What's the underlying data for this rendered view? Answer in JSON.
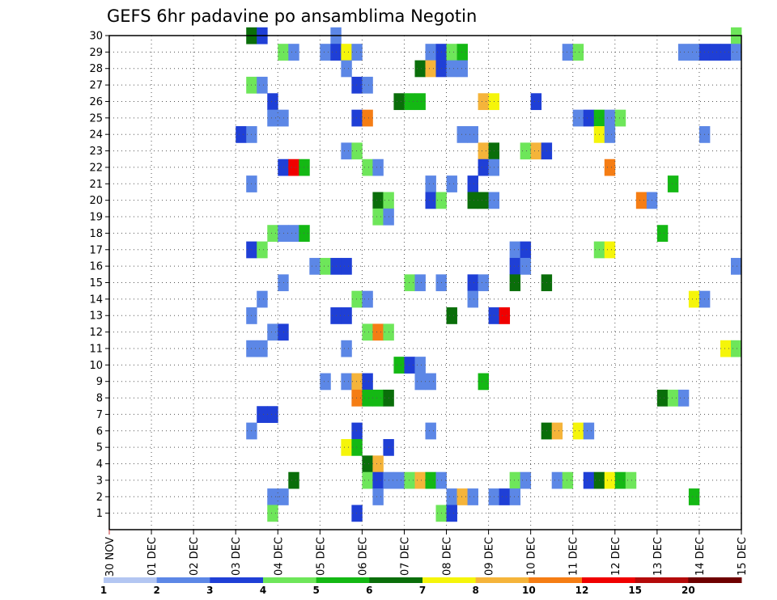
{
  "chart_data": {
    "type": "heatmap",
    "title": "GEFS 6hr padavine po ansamblima Negotin",
    "xlabel": "",
    "ylabel": "",
    "x_tick_labels": [
      "30 NOV",
      "01 DEC",
      "02 DEC",
      "03 DEC",
      "04 DEC",
      "05 DEC",
      "06 DEC",
      "07 DEC",
      "08 DEC",
      "09 DEC",
      "10 DEC",
      "11 DEC",
      "12 DEC",
      "13 DEC",
      "14 DEC",
      "15 DEC"
    ],
    "xlim_steps": [
      0,
      60
    ],
    "y_tick_labels": [
      "1",
      "2",
      "3",
      "4",
      "5",
      "6",
      "7",
      "8",
      "9",
      "10",
      "11",
      "12",
      "13",
      "14",
      "15",
      "16",
      "17",
      "18",
      "19",
      "20",
      "21",
      "22",
      "23",
      "24",
      "25",
      "26",
      "27",
      "28",
      "29",
      "30"
    ],
    "ylim": [
      0,
      30
    ],
    "grid": true,
    "colorbar": {
      "labels": [
        "1",
        "2",
        "3",
        "4",
        "5",
        "6",
        "7",
        "8",
        "10",
        "12",
        "15",
        "20"
      ],
      "colors": [
        "#b3c6f2",
        "#5c87e6",
        "#1f3fd6",
        "#6ee65a",
        "#14b814",
        "#0a6e0a",
        "#f5f50a",
        "#f5b43a",
        "#f57d14",
        "#f00000",
        "#b40a0a",
        "#6e0000"
      ]
    },
    "cells": [
      [
        30,
        13.5,
        5
      ],
      [
        30,
        14.5,
        2
      ],
      [
        30,
        21.5,
        1
      ],
      [
        30,
        59.5,
        3
      ],
      [
        29,
        16.5,
        3
      ],
      [
        29,
        17.5,
        1
      ],
      [
        29,
        20.5,
        1
      ],
      [
        29,
        21.5,
        2
      ],
      [
        29,
        22.5,
        6
      ],
      [
        29,
        23.5,
        1
      ],
      [
        29,
        30.5,
        1
      ],
      [
        29,
        31.5,
        2
      ],
      [
        29,
        32.5,
        3
      ],
      [
        29,
        33.5,
        4
      ],
      [
        29,
        43.5,
        1
      ],
      [
        29,
        44.5,
        3
      ],
      [
        29,
        54.5,
        1
      ],
      [
        29,
        55.5,
        1
      ],
      [
        29,
        56.5,
        2
      ],
      [
        29,
        57.5,
        2
      ],
      [
        29,
        58.5,
        2
      ],
      [
        29,
        59.5,
        1
      ],
      [
        28,
        22.5,
        1
      ],
      [
        28,
        29.5,
        5
      ],
      [
        28,
        30.5,
        7
      ],
      [
        28,
        31.5,
        2
      ],
      [
        28,
        32.5,
        1
      ],
      [
        28,
        33.5,
        1
      ],
      [
        27,
        13.5,
        3
      ],
      [
        27,
        14.5,
        1
      ],
      [
        27,
        23.5,
        2
      ],
      [
        27,
        24.5,
        1
      ],
      [
        26,
        15.5,
        2
      ],
      [
        26,
        27.5,
        5
      ],
      [
        26,
        28.5,
        4
      ],
      [
        26,
        29.5,
        4
      ],
      [
        26,
        35.5,
        7
      ],
      [
        26,
        36.5,
        6
      ],
      [
        26,
        40.5,
        2
      ],
      [
        25,
        15.5,
        1
      ],
      [
        25,
        16.5,
        1
      ],
      [
        25,
        23.5,
        2
      ],
      [
        25,
        24.5,
        8
      ],
      [
        25,
        44.5,
        1
      ],
      [
        25,
        45.5,
        2
      ],
      [
        25,
        46.5,
        4
      ],
      [
        25,
        47.5,
        1
      ],
      [
        25,
        48.5,
        3
      ],
      [
        24,
        12.5,
        2
      ],
      [
        24,
        13.5,
        1
      ],
      [
        24,
        33.5,
        1
      ],
      [
        24,
        34.5,
        1
      ],
      [
        24,
        46.5,
        6
      ],
      [
        24,
        47.5,
        1
      ],
      [
        24,
        56.5,
        1
      ],
      [
        23,
        22.5,
        1
      ],
      [
        23,
        23.5,
        3
      ],
      [
        23,
        35.5,
        7
      ],
      [
        23,
        36.5,
        5
      ],
      [
        23,
        39.5,
        3
      ],
      [
        23,
        40.5,
        7
      ],
      [
        23,
        41.5,
        2
      ],
      [
        22,
        16.5,
        2
      ],
      [
        22,
        17.5,
        9
      ],
      [
        22,
        18.5,
        4
      ],
      [
        22,
        24.5,
        3
      ],
      [
        22,
        25.5,
        1
      ],
      [
        22,
        35.5,
        2
      ],
      [
        22,
        36.5,
        1
      ],
      [
        22,
        47.5,
        8
      ],
      [
        21,
        13.5,
        1
      ],
      [
        21,
        30.5,
        1
      ],
      [
        21,
        32.5,
        1
      ],
      [
        21,
        34.5,
        2
      ],
      [
        21,
        53.5,
        4
      ],
      [
        20,
        25.5,
        5
      ],
      [
        20,
        26.5,
        3
      ],
      [
        20,
        30.5,
        2
      ],
      [
        20,
        31.5,
        3
      ],
      [
        20,
        34.5,
        5
      ],
      [
        20,
        35.5,
        5
      ],
      [
        20,
        36.5,
        1
      ],
      [
        20,
        50.5,
        8
      ],
      [
        20,
        51.5,
        1
      ],
      [
        19,
        25.5,
        3
      ],
      [
        19,
        26.5,
        1
      ],
      [
        18,
        15.5,
        3
      ],
      [
        18,
        16.5,
        1
      ],
      [
        18,
        17.5,
        1
      ],
      [
        18,
        18.5,
        4
      ],
      [
        18,
        52.5,
        4
      ],
      [
        17,
        13.5,
        2
      ],
      [
        17,
        14.5,
        3
      ],
      [
        17,
        38.5,
        1
      ],
      [
        17,
        39.5,
        2
      ],
      [
        17,
        46.5,
        3
      ],
      [
        17,
        47.5,
        6
      ],
      [
        16,
        19.5,
        1
      ],
      [
        16,
        20.5,
        3
      ],
      [
        16,
        21.5,
        2
      ],
      [
        16,
        22.5,
        2
      ],
      [
        16,
        38.5,
        2
      ],
      [
        16,
        39.5,
        1
      ],
      [
        16,
        59.5,
        1
      ],
      [
        15,
        16.5,
        1
      ],
      [
        15,
        28.5,
        3
      ],
      [
        15,
        29.5,
        1
      ],
      [
        15,
        31.5,
        1
      ],
      [
        15,
        34.5,
        2
      ],
      [
        15,
        35.5,
        1
      ],
      [
        15,
        38.5,
        5
      ],
      [
        15,
        41.5,
        5
      ],
      [
        14,
        14.5,
        1
      ],
      [
        14,
        23.5,
        3
      ],
      [
        14,
        24.5,
        1
      ],
      [
        14,
        34.5,
        1
      ],
      [
        14,
        55.5,
        6
      ],
      [
        14,
        56.5,
        1
      ],
      [
        13,
        13.5,
        1
      ],
      [
        13,
        21.5,
        2
      ],
      [
        13,
        22.5,
        2
      ],
      [
        13,
        32.5,
        5
      ],
      [
        13,
        36.5,
        2
      ],
      [
        13,
        37.5,
        9
      ],
      [
        12,
        15.5,
        1
      ],
      [
        12,
        16.5,
        2
      ],
      [
        12,
        24.5,
        3
      ],
      [
        12,
        25.5,
        8
      ],
      [
        12,
        26.5,
        3
      ],
      [
        11,
        13.5,
        1
      ],
      [
        11,
        14.5,
        1
      ],
      [
        11,
        22.5,
        1
      ],
      [
        11,
        58.5,
        6
      ],
      [
        11,
        59.5,
        3
      ],
      [
        10,
        27.5,
        4
      ],
      [
        10,
        28.5,
        2
      ],
      [
        10,
        29.5,
        1
      ],
      [
        9,
        20.5,
        1
      ],
      [
        9,
        22.5,
        1
      ],
      [
        9,
        23.5,
        7
      ],
      [
        9,
        24.5,
        2
      ],
      [
        9,
        29.5,
        1
      ],
      [
        9,
        30.5,
        1
      ],
      [
        9,
        35.5,
        4
      ],
      [
        8,
        23.5,
        8
      ],
      [
        8,
        24.5,
        4
      ],
      [
        8,
        25.5,
        4
      ],
      [
        8,
        26.5,
        5
      ],
      [
        8,
        52.5,
        5
      ],
      [
        8,
        53.5,
        3
      ],
      [
        8,
        54.5,
        1
      ],
      [
        7,
        14.5,
        2
      ],
      [
        7,
        15.5,
        2
      ],
      [
        6,
        13.5,
        1
      ],
      [
        6,
        23.5,
        2
      ],
      [
        6,
        30.5,
        1
      ],
      [
        6,
        41.5,
        5
      ],
      [
        6,
        42.5,
        7
      ],
      [
        6,
        44.5,
        6
      ],
      [
        6,
        45.5,
        1
      ],
      [
        5,
        22.5,
        6
      ],
      [
        5,
        23.5,
        4
      ],
      [
        5,
        26.5,
        2
      ],
      [
        4,
        24.5,
        5
      ],
      [
        4,
        25.5,
        7
      ],
      [
        3,
        17.5,
        5
      ],
      [
        3,
        24.5,
        3
      ],
      [
        3,
        25.5,
        2
      ],
      [
        3,
        26.5,
        1
      ],
      [
        3,
        27.5,
        1
      ],
      [
        3,
        28.5,
        3
      ],
      [
        3,
        29.5,
        7
      ],
      [
        3,
        30.5,
        4
      ],
      [
        3,
        31.5,
        1
      ],
      [
        3,
        38.5,
        3
      ],
      [
        3,
        39.5,
        1
      ],
      [
        3,
        42.5,
        1
      ],
      [
        3,
        43.5,
        3
      ],
      [
        3,
        45.5,
        2
      ],
      [
        3,
        46.5,
        5
      ],
      [
        3,
        47.5,
        6
      ],
      [
        3,
        48.5,
        4
      ],
      [
        3,
        49.5,
        3
      ],
      [
        2,
        15.5,
        1
      ],
      [
        2,
        16.5,
        1
      ],
      [
        2,
        25.5,
        1
      ],
      [
        2,
        32.5,
        1
      ],
      [
        2,
        33.5,
        7
      ],
      [
        2,
        34.5,
        1
      ],
      [
        2,
        36.5,
        1
      ],
      [
        2,
        37.5,
        2
      ],
      [
        2,
        38.5,
        1
      ],
      [
        2,
        55.5,
        4
      ],
      [
        1,
        15.5,
        3
      ],
      [
        1,
        23.5,
        2
      ],
      [
        1,
        31.5,
        3
      ],
      [
        1,
        32.5,
        2
      ]
    ]
  }
}
